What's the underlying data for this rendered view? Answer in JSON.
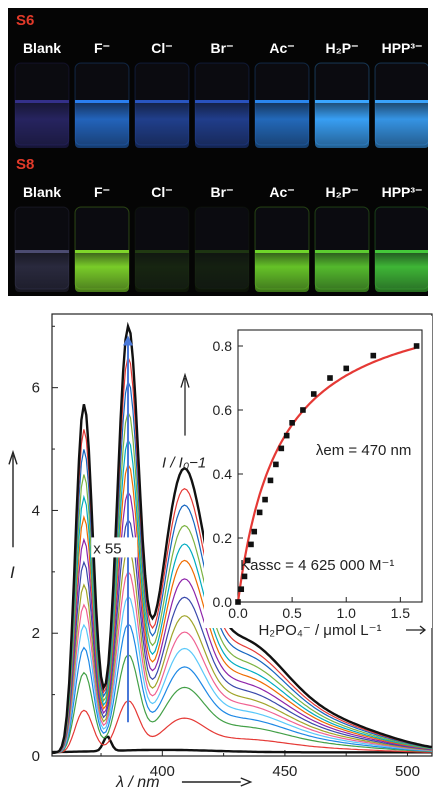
{
  "photo_panel": {
    "rows": [
      {
        "label": "S6",
        "label_color": "#e23a2a",
        "vials": [
          {
            "name": "Blank",
            "glow": "#3f3aa8",
            "intensity": 0.55
          },
          {
            "name": "F⁻",
            "glow": "#2a7ff0",
            "intensity": 0.8
          },
          {
            "name": "Cl⁻",
            "glow": "#2d5fd8",
            "intensity": 0.65
          },
          {
            "name": "Br⁻",
            "glow": "#2d5cd6",
            "intensity": 0.65
          },
          {
            "name": "Ac⁻",
            "glow": "#2a86ee",
            "intensity": 0.8
          },
          {
            "name": "H₂P⁻",
            "glow": "#3aa6ff",
            "intensity": 1.0
          },
          {
            "name": "HPP³⁻",
            "glow": "#3aa2fa",
            "intensity": 0.95
          }
        ]
      },
      {
        "label": "S8",
        "label_color": "#e23a2a",
        "vials": [
          {
            "name": "Blank",
            "glow": "#8c8cd0",
            "intensity": 0.25
          },
          {
            "name": "F⁻",
            "glow": "#7fd62a",
            "intensity": 1.0
          },
          {
            "name": "Cl⁻",
            "glow": "#2f5a14",
            "intensity": 0.35
          },
          {
            "name": "Br⁻",
            "glow": "#2c5514",
            "intensity": 0.3
          },
          {
            "name": "Ac⁻",
            "glow": "#6fd62a",
            "intensity": 0.95
          },
          {
            "name": "H₂P⁻",
            "glow": "#5ccc30",
            "intensity": 0.95
          },
          {
            "name": "HPP³⁻",
            "glow": "#44c83a",
            "intensity": 0.95
          }
        ]
      }
    ]
  },
  "chart_data": [
    {
      "type": "line",
      "xlabel": "λ / nm",
      "ylabel": "I",
      "xlim": [
        355,
        510
      ],
      "ylim": [
        0,
        7.2
      ],
      "x_ticks": [
        400,
        450,
        500
      ],
      "y_ticks": [
        0,
        2,
        4,
        6
      ],
      "annotation": "x 55",
      "arrow": {
        "x": 386,
        "from_y": 0.55,
        "to_y": 6.85
      },
      "peaks": {
        "main_nm": 386,
        "shoulder_nm": 368,
        "tail_nm": 408
      },
      "series": [
        {
          "color": "#111111",
          "peak": 0.3,
          "emphasis": true
        },
        {
          "color": "#e53935",
          "peak": 0.85
        },
        {
          "color": "#43a047",
          "peak": 1.6
        },
        {
          "color": "#1e88e5",
          "peak": 2.1
        },
        {
          "color": "#5ac8fa",
          "peak": 2.55
        },
        {
          "color": "#f06292",
          "peak": 2.95
        },
        {
          "color": "#a0a52a",
          "peak": 3.35
        },
        {
          "color": "#3949ab",
          "peak": 3.8
        },
        {
          "color": "#8e24aa",
          "peak": 4.25
        },
        {
          "color": "#ef6c00",
          "peak": 4.7
        },
        {
          "color": "#00acc1",
          "peak": 5.1
        },
        {
          "color": "#7cb342",
          "peak": 5.55
        },
        {
          "color": "#1565c0",
          "peak": 6.05
        },
        {
          "color": "#e53935",
          "peak": 6.45
        },
        {
          "color": "#111111",
          "peak": 6.95,
          "emphasis": true
        }
      ]
    },
    {
      "type": "scatter",
      "xlabel": "H₂PO₄⁻ / μmol L⁻¹",
      "ylabel": "I / I₀−1",
      "xlim": [
        0,
        1.7
      ],
      "ylim": [
        0,
        0.85
      ],
      "x_ticks": [
        0.0,
        0.5,
        1.0,
        1.5
      ],
      "y_ticks": [
        0.0,
        0.2,
        0.4,
        0.6,
        0.8
      ],
      "annotations": [
        "λem = 470 nm",
        "Kassc = 4 625 000 M⁻¹"
      ],
      "points": [
        [
          0.0,
          0.0
        ],
        [
          0.03,
          0.04
        ],
        [
          0.06,
          0.08
        ],
        [
          0.09,
          0.13
        ],
        [
          0.12,
          0.18
        ],
        [
          0.15,
          0.22
        ],
        [
          0.2,
          0.28
        ],
        [
          0.25,
          0.32
        ],
        [
          0.3,
          0.38
        ],
        [
          0.35,
          0.43
        ],
        [
          0.4,
          0.48
        ],
        [
          0.45,
          0.52
        ],
        [
          0.5,
          0.56
        ],
        [
          0.6,
          0.6
        ],
        [
          0.7,
          0.65
        ],
        [
          0.85,
          0.7
        ],
        [
          1.0,
          0.73
        ],
        [
          1.25,
          0.77
        ],
        [
          1.65,
          0.8
        ]
      ],
      "fit_color": "#e53935",
      "point_color": "#111111"
    }
  ]
}
